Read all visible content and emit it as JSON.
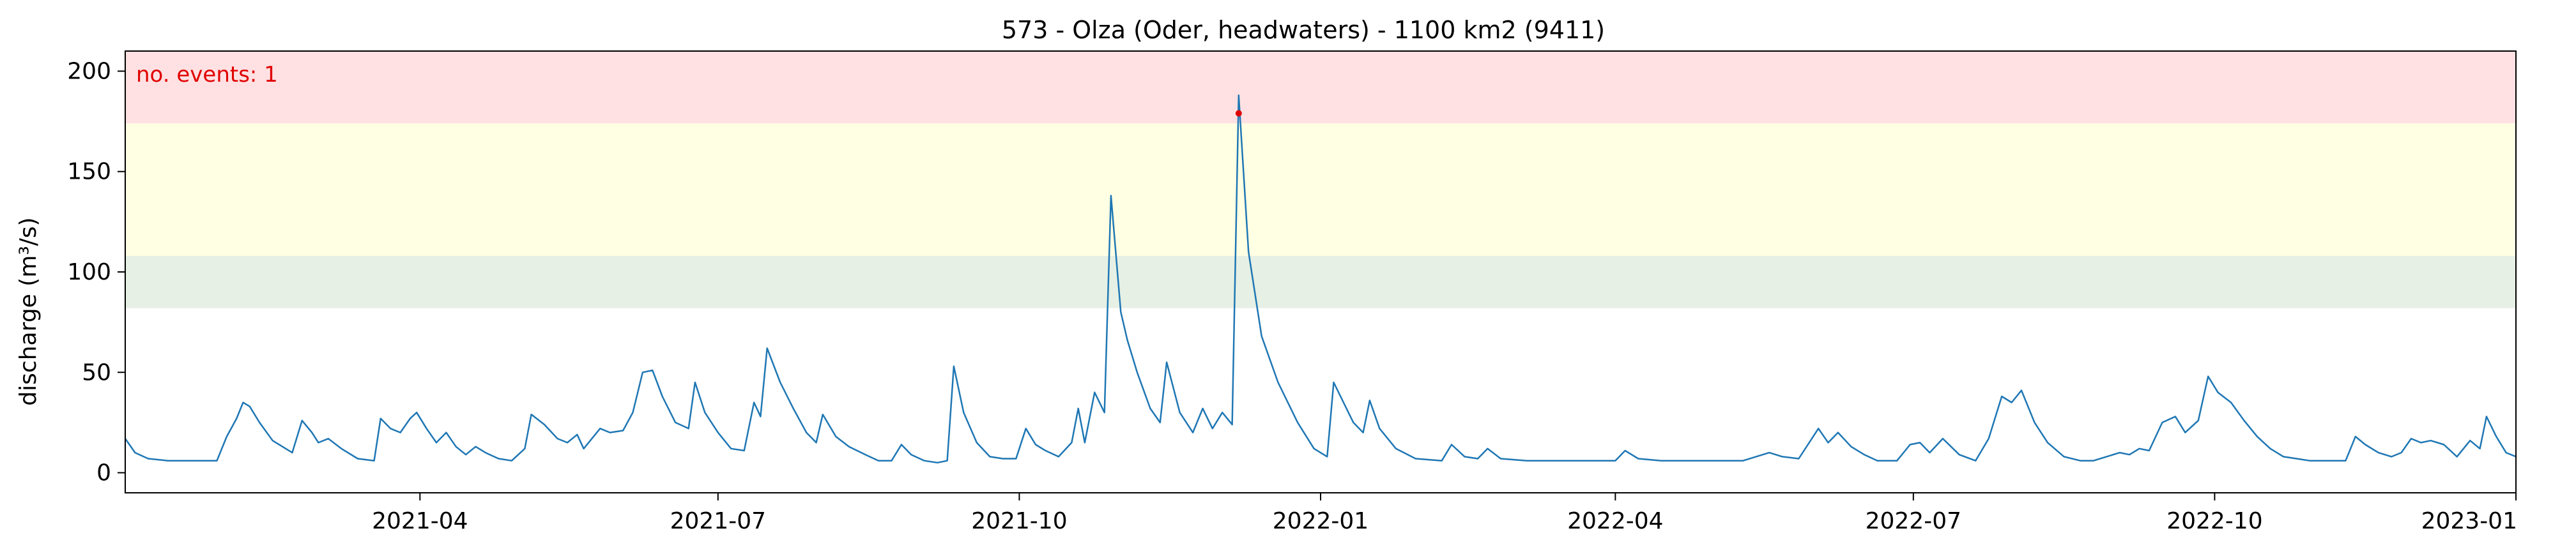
{
  "chart_data": {
    "type": "line",
    "title": "573 - Olza (Oder, headwaters) - 1100 km2 (9411)",
    "xlabel": "",
    "ylabel": "discharge (m³/s)",
    "x_range": [
      "2021-01-01",
      "2023-01-01"
    ],
    "ylim": [
      -10,
      210
    ],
    "y_ticks": [
      0,
      50,
      100,
      150,
      200
    ],
    "x_ticks": [
      "2021-04",
      "2021-07",
      "2021-10",
      "2022-01",
      "2022-04",
      "2022-07",
      "2022-10",
      "2023-01"
    ],
    "grid": false,
    "bands": [
      {
        "from": 82,
        "to": 108,
        "color": "#e6f0e4"
      },
      {
        "from": 108,
        "to": 174,
        "color": "#ffffe3"
      },
      {
        "from": 174,
        "to": 210,
        "color": "#ffe1e3"
      }
    ],
    "series": [
      {
        "color": "#1f77b4",
        "points": [
          [
            "2021-01-01",
            17
          ],
          [
            "2021-01-04",
            10
          ],
          [
            "2021-01-08",
            7
          ],
          [
            "2021-01-14",
            6
          ],
          [
            "2021-01-25",
            6
          ],
          [
            "2021-01-29",
            6
          ],
          [
            "2021-02-01",
            18
          ],
          [
            "2021-02-04",
            27
          ],
          [
            "2021-02-06",
            35
          ],
          [
            "2021-02-08",
            33
          ],
          [
            "2021-02-11",
            25
          ],
          [
            "2021-02-15",
            16
          ],
          [
            "2021-02-19",
            12
          ],
          [
            "2021-02-21",
            10
          ],
          [
            "2021-02-24",
            26
          ],
          [
            "2021-02-27",
            20
          ],
          [
            "2021-03-01",
            15
          ],
          [
            "2021-03-04",
            17
          ],
          [
            "2021-03-08",
            12
          ],
          [
            "2021-03-13",
            7
          ],
          [
            "2021-03-18",
            6
          ],
          [
            "2021-03-20",
            27
          ],
          [
            "2021-03-23",
            22
          ],
          [
            "2021-03-26",
            20
          ],
          [
            "2021-03-29",
            27
          ],
          [
            "2021-03-31",
            30
          ],
          [
            "2021-04-03",
            22
          ],
          [
            "2021-04-06",
            15
          ],
          [
            "2021-04-09",
            20
          ],
          [
            "2021-04-12",
            13
          ],
          [
            "2021-04-15",
            9
          ],
          [
            "2021-04-18",
            13
          ],
          [
            "2021-04-21",
            10
          ],
          [
            "2021-04-25",
            7
          ],
          [
            "2021-04-29",
            6
          ],
          [
            "2021-05-03",
            12
          ],
          [
            "2021-05-05",
            29
          ],
          [
            "2021-05-09",
            24
          ],
          [
            "2021-05-13",
            17
          ],
          [
            "2021-05-16",
            15
          ],
          [
            "2021-05-19",
            19
          ],
          [
            "2021-05-21",
            12
          ],
          [
            "2021-05-23",
            16
          ],
          [
            "2021-05-26",
            22
          ],
          [
            "2021-05-29",
            20
          ],
          [
            "2021-06-02",
            21
          ],
          [
            "2021-06-05",
            30
          ],
          [
            "2021-06-08",
            50
          ],
          [
            "2021-06-11",
            51
          ],
          [
            "2021-06-14",
            38
          ],
          [
            "2021-06-18",
            25
          ],
          [
            "2021-06-22",
            22
          ],
          [
            "2021-06-24",
            45
          ],
          [
            "2021-06-27",
            30
          ],
          [
            "2021-07-01",
            20
          ],
          [
            "2021-07-05",
            12
          ],
          [
            "2021-07-09",
            11
          ],
          [
            "2021-07-12",
            35
          ],
          [
            "2021-07-14",
            28
          ],
          [
            "2021-07-16",
            62
          ],
          [
            "2021-07-20",
            45
          ],
          [
            "2021-07-24",
            32
          ],
          [
            "2021-07-28",
            20
          ],
          [
            "2021-07-31",
            15
          ],
          [
            "2021-08-02",
            29
          ],
          [
            "2021-08-06",
            18
          ],
          [
            "2021-08-10",
            13
          ],
          [
            "2021-08-15",
            9
          ],
          [
            "2021-08-19",
            6
          ],
          [
            "2021-08-23",
            6
          ],
          [
            "2021-08-26",
            14
          ],
          [
            "2021-08-29",
            9
          ],
          [
            "2021-09-02",
            6
          ],
          [
            "2021-09-06",
            5
          ],
          [
            "2021-09-09",
            6
          ],
          [
            "2021-09-11",
            53
          ],
          [
            "2021-09-14",
            30
          ],
          [
            "2021-09-18",
            15
          ],
          [
            "2021-09-22",
            8
          ],
          [
            "2021-09-26",
            7
          ],
          [
            "2021-09-30",
            7
          ],
          [
            "2021-10-03",
            22
          ],
          [
            "2021-10-06",
            14
          ],
          [
            "2021-10-09",
            11
          ],
          [
            "2021-10-13",
            8
          ],
          [
            "2021-10-17",
            15
          ],
          [
            "2021-10-19",
            32
          ],
          [
            "2021-10-21",
            15
          ],
          [
            "2021-10-24",
            40
          ],
          [
            "2021-10-27",
            30
          ],
          [
            "2021-10-29",
            138
          ],
          [
            "2021-11-01",
            80
          ],
          [
            "2021-11-03",
            66
          ],
          [
            "2021-11-06",
            50
          ],
          [
            "2021-11-10",
            32
          ],
          [
            "2021-11-13",
            25
          ],
          [
            "2021-11-15",
            55
          ],
          [
            "2021-11-19",
            30
          ],
          [
            "2021-11-23",
            20
          ],
          [
            "2021-11-26",
            32
          ],
          [
            "2021-11-29",
            22
          ],
          [
            "2021-12-02",
            30
          ],
          [
            "2021-12-05",
            24
          ],
          [
            "2021-12-07",
            188
          ],
          [
            "2021-12-10",
            110
          ],
          [
            "2021-12-14",
            68
          ],
          [
            "2021-12-19",
            45
          ],
          [
            "2021-12-25",
            25
          ],
          [
            "2021-12-30",
            12
          ],
          [
            "2022-01-03",
            8
          ],
          [
            "2022-01-05",
            45
          ],
          [
            "2022-01-08",
            35
          ],
          [
            "2022-01-11",
            25
          ],
          [
            "2022-01-14",
            20
          ],
          [
            "2022-01-16",
            36
          ],
          [
            "2022-01-19",
            22
          ],
          [
            "2022-01-24",
            12
          ],
          [
            "2022-01-30",
            7
          ],
          [
            "2022-02-07",
            6
          ],
          [
            "2022-02-10",
            14
          ],
          [
            "2022-02-14",
            8
          ],
          [
            "2022-02-18",
            7
          ],
          [
            "2022-02-21",
            12
          ],
          [
            "2022-02-25",
            7
          ],
          [
            "2022-03-05",
            6
          ],
          [
            "2022-03-15",
            6
          ],
          [
            "2022-03-25",
            6
          ],
          [
            "2022-04-01",
            6
          ],
          [
            "2022-04-04",
            11
          ],
          [
            "2022-04-08",
            7
          ],
          [
            "2022-04-15",
            6
          ],
          [
            "2022-04-25",
            6
          ],
          [
            "2022-05-02",
            6
          ],
          [
            "2022-05-10",
            6
          ],
          [
            "2022-05-18",
            10
          ],
          [
            "2022-05-22",
            8
          ],
          [
            "2022-05-27",
            7
          ],
          [
            "2022-06-02",
            22
          ],
          [
            "2022-06-05",
            15
          ],
          [
            "2022-06-08",
            20
          ],
          [
            "2022-06-12",
            13
          ],
          [
            "2022-06-16",
            9
          ],
          [
            "2022-06-20",
            6
          ],
          [
            "2022-06-26",
            6
          ],
          [
            "2022-06-30",
            14
          ],
          [
            "2022-07-03",
            15
          ],
          [
            "2022-07-06",
            10
          ],
          [
            "2022-07-10",
            17
          ],
          [
            "2022-07-15",
            9
          ],
          [
            "2022-07-20",
            6
          ],
          [
            "2022-07-24",
            17
          ],
          [
            "2022-07-28",
            38
          ],
          [
            "2022-07-31",
            35
          ],
          [
            "2022-08-03",
            41
          ],
          [
            "2022-08-07",
            25
          ],
          [
            "2022-08-11",
            15
          ],
          [
            "2022-08-16",
            8
          ],
          [
            "2022-08-21",
            6
          ],
          [
            "2022-08-25",
            6
          ],
          [
            "2022-08-29",
            8
          ],
          [
            "2022-09-02",
            10
          ],
          [
            "2022-09-05",
            9
          ],
          [
            "2022-09-08",
            12
          ],
          [
            "2022-09-11",
            11
          ],
          [
            "2022-09-15",
            25
          ],
          [
            "2022-09-19",
            28
          ],
          [
            "2022-09-22",
            20
          ],
          [
            "2022-09-26",
            26
          ],
          [
            "2022-09-29",
            48
          ],
          [
            "2022-10-02",
            40
          ],
          [
            "2022-10-06",
            35
          ],
          [
            "2022-10-10",
            26
          ],
          [
            "2022-10-14",
            18
          ],
          [
            "2022-10-18",
            12
          ],
          [
            "2022-10-22",
            8
          ],
          [
            "2022-10-26",
            7
          ],
          [
            "2022-10-30",
            6
          ],
          [
            "2022-11-05",
            6
          ],
          [
            "2022-11-10",
            6
          ],
          [
            "2022-11-13",
            18
          ],
          [
            "2022-11-16",
            14
          ],
          [
            "2022-11-20",
            10
          ],
          [
            "2022-11-24",
            8
          ],
          [
            "2022-11-27",
            10
          ],
          [
            "2022-11-30",
            17
          ],
          [
            "2022-12-03",
            15
          ],
          [
            "2022-12-06",
            16
          ],
          [
            "2022-12-10",
            14
          ],
          [
            "2022-12-14",
            8
          ],
          [
            "2022-12-18",
            16
          ],
          [
            "2022-12-21",
            12
          ],
          [
            "2022-12-23",
            28
          ],
          [
            "2022-12-26",
            18
          ],
          [
            "2022-12-29",
            10
          ],
          [
            "2023-01-01",
            8
          ]
        ]
      }
    ],
    "events": [
      {
        "x": "2021-12-07",
        "y": 179,
        "color": "#e00000"
      }
    ],
    "annotation": "no. events: 1"
  }
}
